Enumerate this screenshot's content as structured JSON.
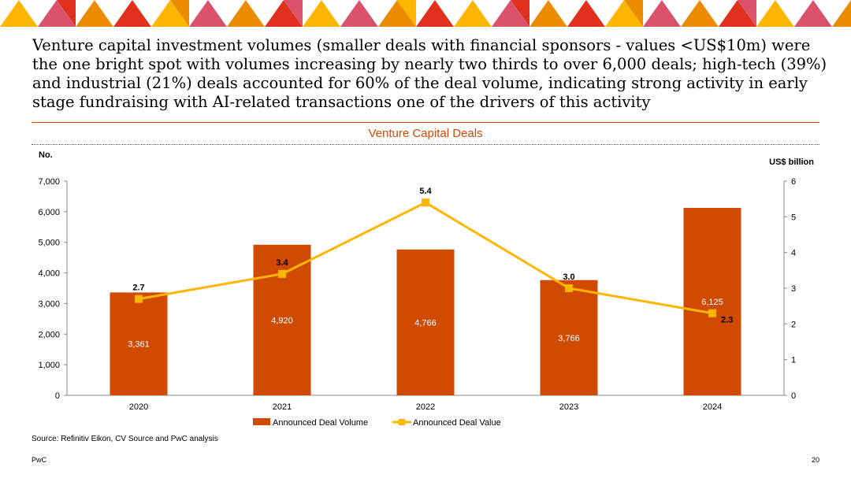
{
  "headline": "Venture capital investment volumes (smaller deals with financial sponsors - values <US$10m) were the one bright spot with volumes increasing by nearly two thirds to over 6,000 deals; high-tech (39%) and industrial (21%) deals accounted for 60% of the deal volume, indicating strong activity in early stage fundraising with AI-related transactions one of the drivers of this activity",
  "source": "Source: Refinitiv Eikon, CV Source and PwC analysis",
  "footer": {
    "brand": "PwC",
    "page": "20"
  },
  "colors": {
    "accent": "#d04a02",
    "line": "#ffb600",
    "pink": "#e0301e",
    "magenta": "#db536a",
    "amber": "#eb8c00"
  },
  "chart_data": {
    "type": "bar",
    "title": "Venture Capital Deals",
    "ylabel_left": "No.",
    "ylabel_right": "US$ billion",
    "categories": [
      "2020",
      "2021",
      "2022",
      "2023",
      "2024"
    ],
    "series": [
      {
        "name": "Announced Deal Volume",
        "type": "bar",
        "axis": "left",
        "values": [
          3361,
          4920,
          4766,
          3766,
          6125
        ],
        "labels": [
          "3,361",
          "4,920",
          "4,766",
          "3,766",
          "6,125"
        ]
      },
      {
        "name": "Announced Deal Value",
        "type": "line",
        "axis": "right",
        "values": [
          2.7,
          3.4,
          5.4,
          3.0,
          2.3
        ],
        "labels": [
          "2.7",
          "3.4",
          "5.4",
          "3.0",
          "2.3"
        ]
      }
    ],
    "ylim_left": [
      0,
      7000
    ],
    "yticks_left": [
      "0",
      "1,000",
      "2,000",
      "3,000",
      "4,000",
      "5,000",
      "6,000",
      "7,000"
    ],
    "ylim_right": [
      0,
      6
    ],
    "yticks_right": [
      "0",
      "1",
      "2",
      "3",
      "4",
      "5",
      "6"
    ],
    "legend_position": "bottom",
    "grid": false
  }
}
